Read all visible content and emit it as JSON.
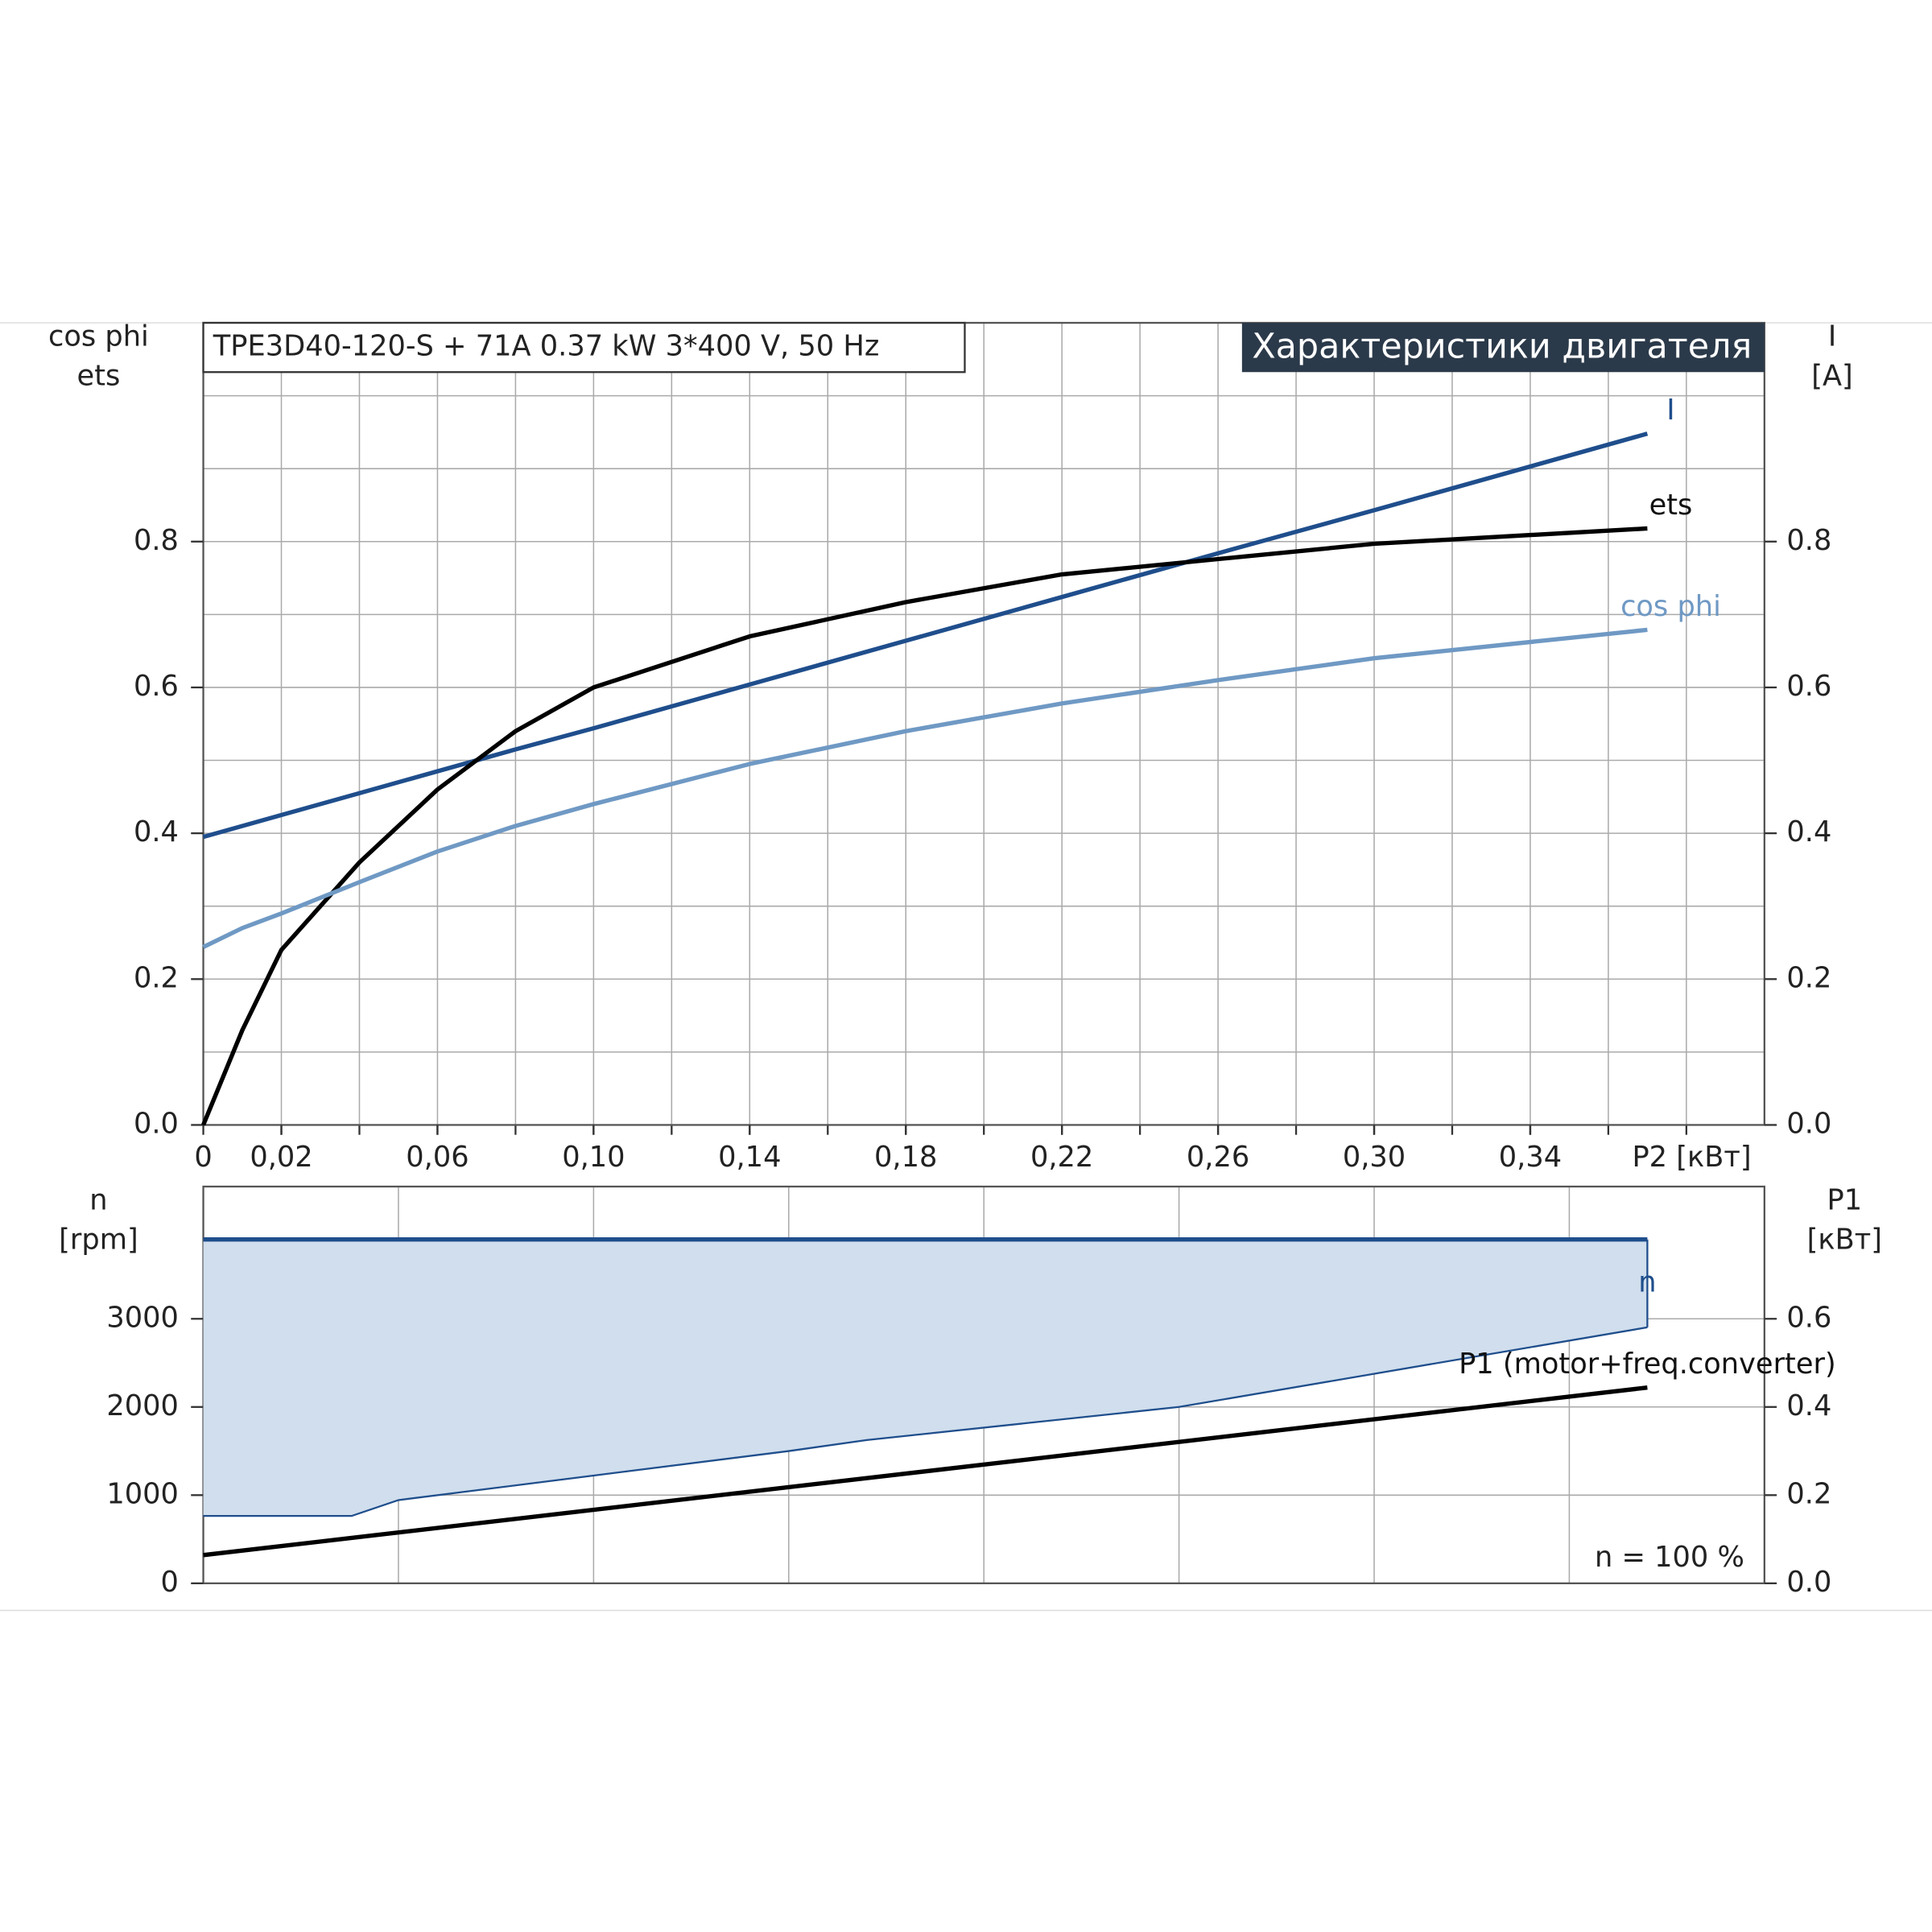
{
  "chart_data": [
    {
      "type": "line",
      "title": "TPE3D40-120-S + 71A   0.37 kW   3*400 V, 50 Hz",
      "subtitle": "Характеристики двигателя",
      "ylabel": [
        "cos phi",
        "ets"
      ],
      "y2label": [
        "I",
        "[A]"
      ],
      "xlabel": "P2 [кВт]",
      "x": [
        0,
        0.01,
        0.02,
        0.04,
        0.06,
        0.08,
        0.1,
        0.14,
        0.18,
        0.22,
        0.26,
        0.3,
        0.37
      ],
      "series": [
        {
          "name": "I",
          "color": "#1f4e8c",
          "axis": "y2",
          "values": [
            0.395,
            0.41,
            0.425,
            0.455,
            0.485,
            0.515,
            0.544,
            0.604,
            0.664,
            0.724,
            0.784,
            0.843,
            0.948
          ]
        },
        {
          "name": "ets",
          "color": "#000000",
          "values": [
            0,
            0.13,
            0.24,
            0.36,
            0.46,
            0.54,
            0.6,
            0.67,
            0.717,
            0.755,
            0.776,
            0.797,
            0.818
          ]
        },
        {
          "name": "cos phi",
          "color": "#6f99c4",
          "values": [
            0.244,
            0.27,
            0.29,
            0.333,
            0.375,
            0.41,
            0.44,
            0.495,
            0.54,
            0.578,
            0.61,
            0.64,
            0.679
          ]
        }
      ],
      "xlim": [
        0,
        0.4
      ],
      "xticks": [
        0,
        {
          "value": 0.02,
          "label": "0,02"
        },
        {
          "value": 0.06,
          "label": "0,06"
        },
        {
          "value": 0.1,
          "label": "0,10"
        },
        {
          "value": 0.14,
          "label": "0,14"
        },
        {
          "value": 0.18,
          "label": "0,18"
        },
        {
          "value": 0.22,
          "label": "0,22"
        },
        {
          "value": 0.26,
          "label": "0,26"
        },
        {
          "value": 0.3,
          "label": "0,30"
        },
        {
          "value": 0.34,
          "label": "0,34"
        }
      ],
      "xgrid": [
        0.02,
        0.04,
        0.06,
        0.08,
        0.1,
        0.12,
        0.14,
        0.16,
        0.18,
        0.2,
        0.22,
        0.24,
        0.26,
        0.28,
        0.3,
        0.32,
        0.34,
        0.36,
        0.38
      ],
      "ylim": [
        0,
        1.1
      ],
      "yticks": [
        {
          "value": 0,
          "label": "0.0"
        },
        0.2,
        0.4,
        0.6,
        0.8
      ],
      "ygrid": [
        0.1,
        0.2,
        0.3,
        0.4,
        0.5,
        0.6,
        0.7,
        0.8,
        0.9,
        1.0
      ],
      "y2lim": [
        0,
        1.1
      ],
      "y2ticks": [
        {
          "value": 0,
          "label": "0.0"
        },
        0.2,
        0.4,
        0.6,
        0.8
      ],
      "grid": true
    },
    {
      "type": "line",
      "ylabel": [
        "n",
        "[rpm]"
      ],
      "y2label": [
        "P1",
        "[кВт]"
      ],
      "annotation": "n = 100 %",
      "series": [
        {
          "name": "n",
          "color": "#1f4e8c",
          "fill": "#d0deed",
          "x": [
            0,
            0.038,
            0.05,
            0.1,
            0.15,
            0.17,
            0.25,
            0.37
          ],
          "values": [
            3900,
            3900,
            3900,
            3900,
            3900,
            3900,
            3900,
            3900
          ],
          "lower": [
            764,
            764,
            944,
            1222,
            1500,
            1625,
            2000,
            2903
          ]
        },
        {
          "name": "P1 (motor+freq.converter)",
          "color": "#000000",
          "axis": "y2",
          "x": [
            0,
            0.37
          ],
          "values": [
            0.064,
            0.444
          ]
        }
      ],
      "xlim": [
        0,
        0.4
      ],
      "xticks": [],
      "xgrid": [
        0.05,
        0.1,
        0.15,
        0.2,
        0.25,
        0.3,
        0.35
      ],
      "ylim": [
        0,
        4500
      ],
      "yticks": [
        0,
        1000,
        2000,
        3000
      ],
      "ygrid": [
        1000,
        2000,
        3000
      ],
      "y2lim": [
        0,
        0.9
      ],
      "y2ticks": [
        {
          "value": 0,
          "label": "0.0"
        },
        0.2,
        0.4,
        0.6
      ],
      "grid": true
    }
  ]
}
